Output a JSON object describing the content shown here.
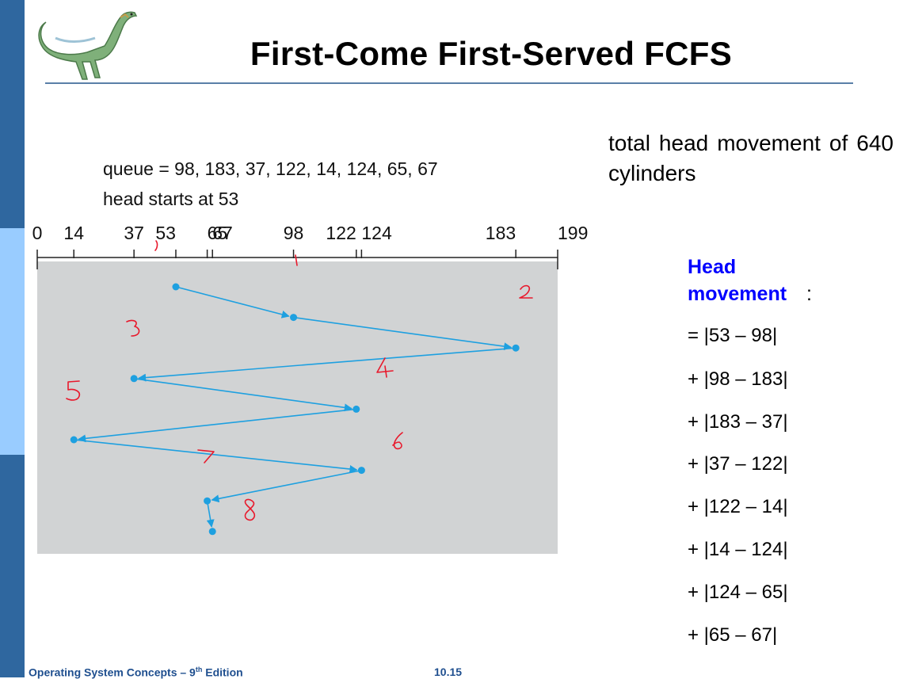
{
  "slide": {
    "title": "First-Come First-Served FCFS",
    "queue_text": "queue = 98, 183, 37, 122, 14, 124, 65, 67",
    "head_text": "head starts at 53",
    "total_text": "total head movement of 640 cylinders"
  },
  "axis": {
    "min": 0,
    "max": 199,
    "ticks": [
      0,
      14,
      37,
      53,
      65,
      67,
      98,
      122,
      124,
      183,
      199
    ],
    "tick_labels": [
      "0",
      "14",
      "37",
      "53",
      "65",
      "67",
      "98",
      "122",
      "124",
      "183",
      "199"
    ]
  },
  "chart_data": {
    "type": "line",
    "head_start": 53,
    "sequence": [
      53,
      98,
      183,
      37,
      122,
      14,
      124,
      65,
      67
    ],
    "xlim": [
      0,
      199
    ]
  },
  "head_movement": {
    "title": "Head movement",
    "lines": [
      "= |53 – 98|",
      "+ |98 – 183|",
      "+ |183 – 37|",
      "+ |37 – 122|",
      "+ |122 – 14|",
      "+ |14 – 124|",
      "+ |124 – 65|",
      "+ |65 – 67|"
    ]
  },
  "annotations": [
    "0",
    "1",
    "2",
    "3",
    "4",
    "5",
    "6",
    "7",
    "8"
  ],
  "footer": {
    "book": "Operating System Concepts – 9",
    "book_sup": "th",
    "book_tail": " Edition",
    "page": "10.15"
  },
  "colors": {
    "sidebar": "#2f679f",
    "sidebar_light": "#99ccff",
    "path": "#1ea0e0",
    "panel": "#d1d3d4",
    "annotation": "#e8192c",
    "heading_accent": "#0000ff"
  }
}
